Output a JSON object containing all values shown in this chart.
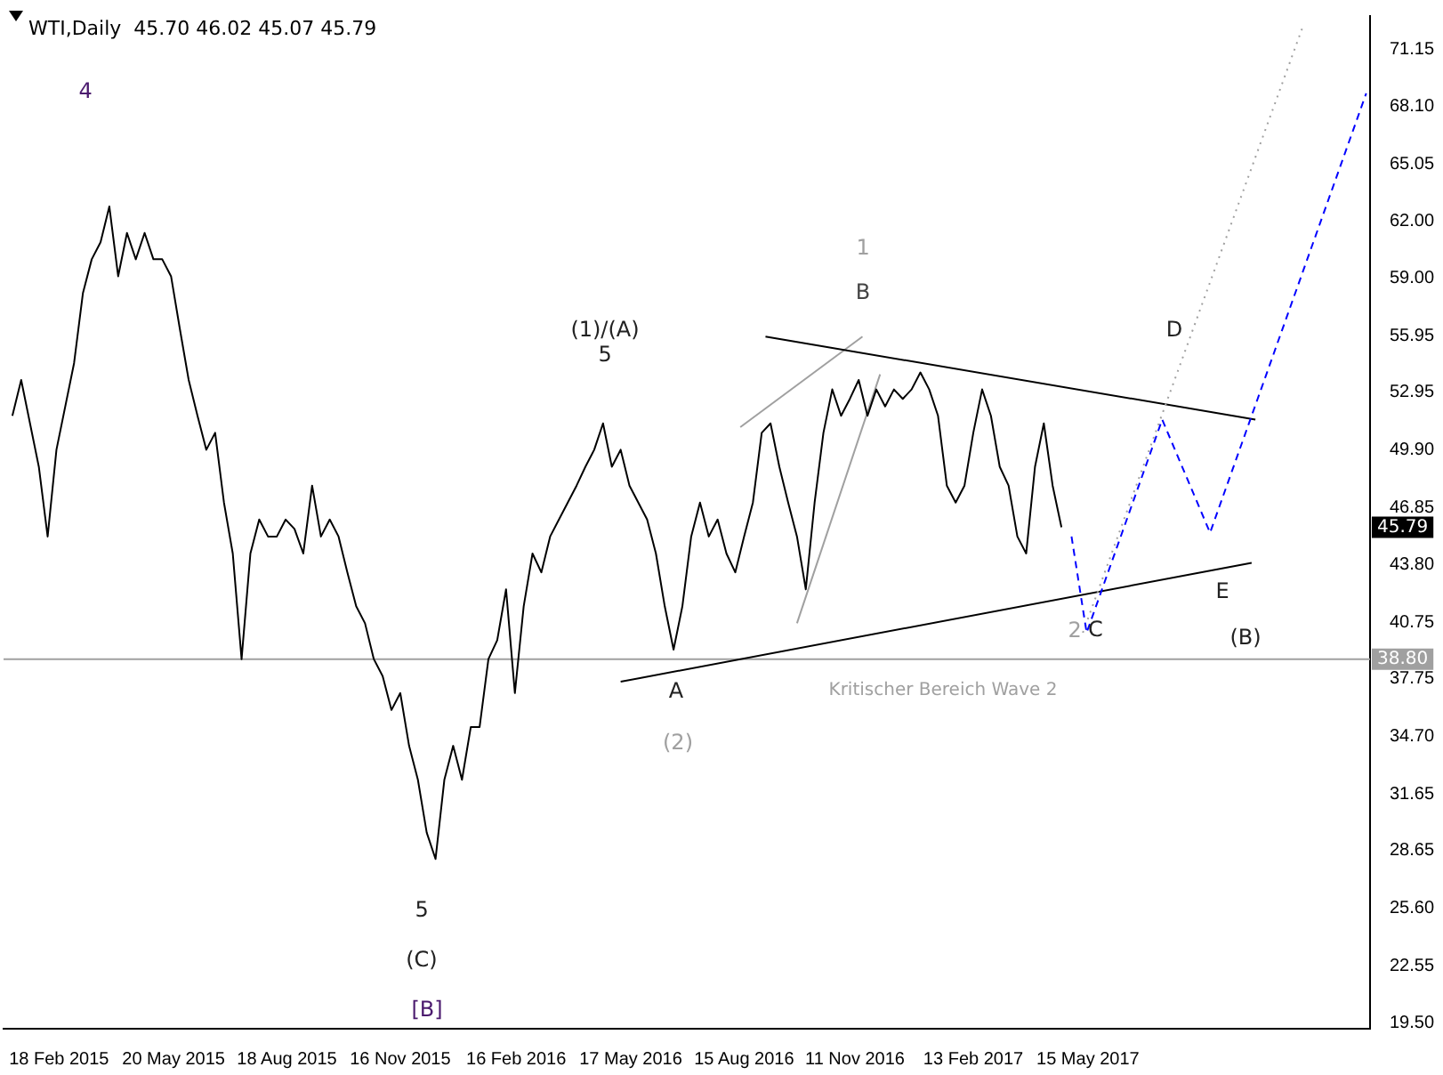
{
  "chart_data": {
    "type": "line",
    "title": "WTI,Daily  45.70 46.02 45.07 45.79",
    "xlim": [
      "2015-01-05",
      "2017-12-25"
    ],
    "ylim": [
      19.2,
      72.9
    ],
    "xticks": [
      {
        "value": "2015-02-18",
        "label": "18 Feb 2015"
      },
      {
        "value": "2015-05-20",
        "label": "20 May 2015"
      },
      {
        "value": "2015-08-18",
        "label": "18 Aug 2015"
      },
      {
        "value": "2015-11-16",
        "label": "16 Nov 2015"
      },
      {
        "value": "2016-02-16",
        "label": "16 Feb 2016"
      },
      {
        "value": "2016-05-17",
        "label": "17 May 2016"
      },
      {
        "value": "2016-08-15",
        "label": "15 Aug 2016"
      },
      {
        "value": "2016-11-11",
        "label": "11 Nov 2016"
      },
      {
        "value": "2017-02-13",
        "label": "13 Feb 2017"
      },
      {
        "value": "2017-05-15",
        "label": "15 May 2017"
      }
    ],
    "yticks": [
      {
        "value": 19.5,
        "label": "19.50"
      },
      {
        "value": 22.55,
        "label": "22.55"
      },
      {
        "value": 25.6,
        "label": "25.60"
      },
      {
        "value": 28.65,
        "label": "28.65"
      },
      {
        "value": 31.65,
        "label": "31.65"
      },
      {
        "value": 34.7,
        "label": "34.70"
      },
      {
        "value": 37.75,
        "label": "37.75"
      },
      {
        "value": 40.75,
        "label": "40.75"
      },
      {
        "value": 43.8,
        "label": "43.80"
      },
      {
        "value": 46.85,
        "label": "46.85"
      },
      {
        "value": 49.9,
        "label": "49.90"
      },
      {
        "value": 52.95,
        "label": "52.95"
      },
      {
        "value": 55.95,
        "label": "55.95"
      },
      {
        "value": 59,
        "label": "59.00"
      },
      {
        "value": 62,
        "label": "62.00"
      },
      {
        "value": 65.05,
        "label": "65.05"
      },
      {
        "value": 68.1,
        "label": "68.10"
      },
      {
        "value": 71.15,
        "label": "71.15"
      }
    ],
    "grid": false,
    "legend": false,
    "marker": "none",
    "series": [
      {
        "color": "#000000",
        "line_style": "solid",
        "x": [
          "2015-01-12",
          "2015-01-19",
          "2015-02-02",
          "2015-02-09",
          "2015-02-16",
          "2015-03-02",
          "2015-03-09",
          "2015-03-16",
          "2015-03-23",
          "2015-03-30",
          "2015-04-06",
          "2015-04-13",
          "2015-04-20",
          "2015-04-27",
          "2015-05-04",
          "2015-05-11",
          "2015-05-18",
          "2015-05-25",
          "2015-06-01",
          "2015-06-08",
          "2015-06-15",
          "2015-06-22",
          "2015-06-29",
          "2015-07-06",
          "2015-07-13",
          "2015-07-20",
          "2015-07-27",
          "2015-08-03",
          "2015-08-10",
          "2015-08-17",
          "2015-08-24",
          "2015-08-31",
          "2015-09-07",
          "2015-09-14",
          "2015-09-21",
          "2015-09-28",
          "2015-10-05",
          "2015-10-12",
          "2015-10-19",
          "2015-10-26",
          "2015-11-02",
          "2015-11-09",
          "2015-11-16",
          "2015-11-23",
          "2015-11-30",
          "2015-12-07",
          "2015-12-14",
          "2015-12-21",
          "2015-12-28",
          "2016-01-04",
          "2016-01-11",
          "2016-01-18",
          "2016-01-25",
          "2016-02-01",
          "2016-02-08",
          "2016-02-15",
          "2016-02-22",
          "2016-02-29",
          "2016-03-07",
          "2016-03-14",
          "2016-03-21",
          "2016-03-28",
          "2016-04-04",
          "2016-04-11",
          "2016-04-18",
          "2016-04-25",
          "2016-05-02",
          "2016-05-09",
          "2016-05-16",
          "2016-05-23",
          "2016-05-30",
          "2016-06-06",
          "2016-06-13",
          "2016-06-20",
          "2016-06-27",
          "2016-07-04",
          "2016-07-11",
          "2016-07-18",
          "2016-07-25",
          "2016-08-01",
          "2016-08-08",
          "2016-08-15",
          "2016-08-22",
          "2016-08-29",
          "2016-09-05",
          "2016-09-12",
          "2016-09-19",
          "2016-09-26",
          "2016-10-03",
          "2016-10-10",
          "2016-10-17",
          "2016-10-24",
          "2016-10-31",
          "2016-11-07",
          "2016-11-14",
          "2016-11-21",
          "2016-11-28",
          "2016-12-05",
          "2016-12-12",
          "2016-12-19",
          "2016-12-26",
          "2017-01-02",
          "2017-01-09",
          "2017-01-16",
          "2017-01-23",
          "2017-01-30",
          "2017-02-06",
          "2017-02-13",
          "2017-02-20",
          "2017-02-27",
          "2017-03-06",
          "2017-03-13",
          "2017-03-20",
          "2017-03-27",
          "2017-04-03",
          "2017-04-10",
          "2017-04-17",
          "2017-04-24"
        ],
        "values": [
          51.7,
          53.6,
          49,
          45.3,
          49.9,
          54.5,
          58.2,
          60,
          60.9,
          62.8,
          59.1,
          61.4,
          60,
          61.4,
          60,
          60,
          59.1,
          56.3,
          53.6,
          51.7,
          49.9,
          50.8,
          47.1,
          44.4,
          38.8,
          44.4,
          46.2,
          45.3,
          45.3,
          46.2,
          45.7,
          44.4,
          48,
          45.3,
          46.2,
          45.3,
          43.4,
          41.6,
          40.7,
          38.8,
          37.9,
          36.1,
          37,
          34.2,
          32.4,
          29.6,
          28.2,
          32.4,
          34.2,
          32.4,
          35.2,
          35.2,
          38.8,
          39.8,
          42.5,
          37,
          41.6,
          44.4,
          43.4,
          45.3,
          46.2,
          47.1,
          48,
          49,
          49.9,
          51.3,
          49,
          49.9,
          48,
          47.1,
          46.2,
          44.4,
          41.6,
          39.3,
          41.6,
          45.3,
          47.1,
          45.3,
          46.2,
          44.4,
          43.4,
          45.3,
          47.1,
          50.8,
          51.3,
          49,
          47.1,
          45.3,
          42.5,
          47.1,
          50.8,
          53.1,
          51.7,
          52.6,
          53.6,
          51.7,
          53.1,
          52.2,
          53.1,
          52.6,
          53.1,
          54,
          53.1,
          51.7,
          48,
          47.1,
          48,
          50.8,
          53.1,
          51.7,
          49,
          48,
          45.3,
          44.4,
          49,
          51.3,
          48,
          45.79
        ]
      },
      {
        "color": "#0000ff",
        "line_style": "dashed",
        "x": [
          "2017-05-02",
          "2017-05-14",
          "2017-07-13",
          "2017-08-20",
          "2017-12-22"
        ],
        "values": [
          45.3,
          40.2,
          51.5,
          45.5,
          68.8
        ]
      },
      {
        "color": "#a0a0a0",
        "line_style": "dotted",
        "x": [
          "2017-05-11",
          "2017-11-02"
        ],
        "values": [
          40.2,
          72.4
        ]
      },
      {
        "color": "#000000",
        "line_style": "solid",
        "x": [
          "2016-09-01",
          "2017-09-25"
        ],
        "values": [
          55.9,
          51.5
        ]
      },
      {
        "color": "#000000",
        "line_style": "solid",
        "x": [
          "2016-05-09",
          "2017-09-22"
        ],
        "values": [
          37.6,
          43.9
        ]
      },
      {
        "color": "#a0a0a0",
        "line_style": "solid",
        "x": [
          "2016-08-12",
          "2016-11-17"
        ],
        "values": [
          51.1,
          55.9
        ]
      },
      {
        "color": "#a0a0a0",
        "line_style": "solid",
        "x": [
          "2016-09-26",
          "2016-12-01"
        ],
        "values": [
          40.7,
          53.9
        ]
      }
    ],
    "ref_lines": [
      {
        "axis": "y",
        "value": 38.8,
        "label": "38.80",
        "color": "#a0a0a0"
      }
    ],
    "annotations": [
      "4",
      "(1)/(A)",
      "5",
      "1",
      "B",
      "D",
      "A",
      "(2)",
      "2",
      {
        "text": "C",
        "x": "2017-05-14",
        "y": 40.2
      },
      "E",
      "(B)",
      "5",
      "(C)",
      "[B]",
      "Kritischer Bereich Wave 2",
      {
        "text": "45.79",
        "y": 45.79
      }
    ]
  }
}
